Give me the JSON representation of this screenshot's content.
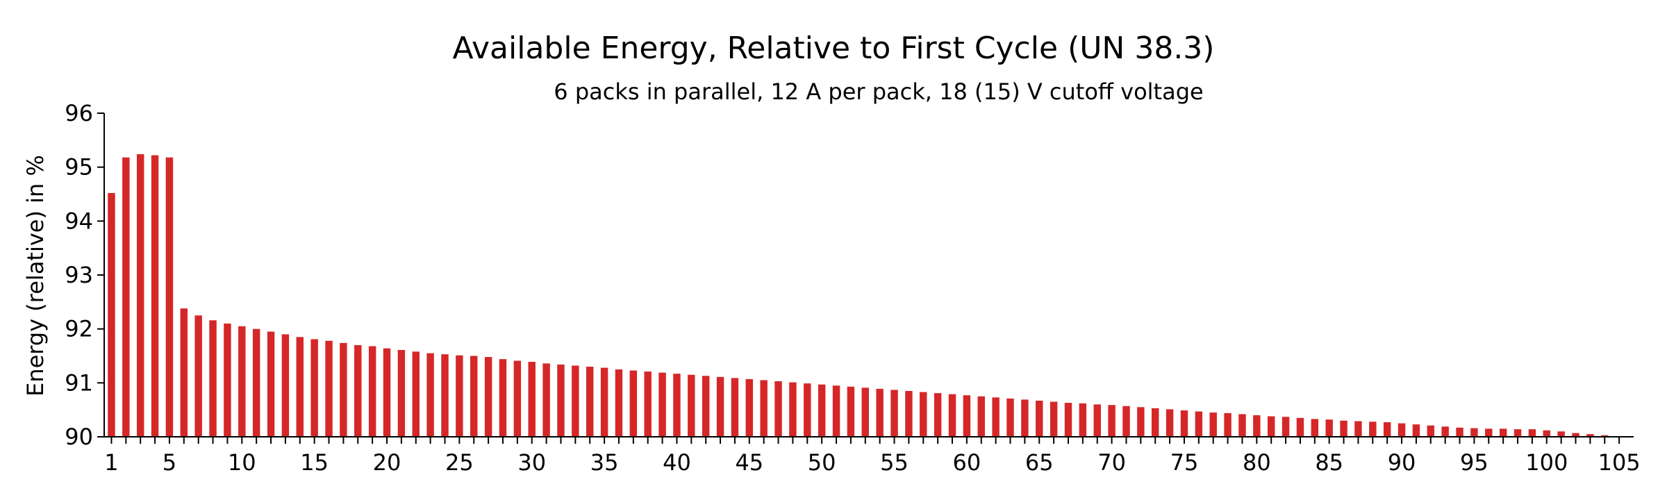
{
  "chart_data": {
    "type": "bar",
    "title": "Available Energy, Relative to First Cycle (UN 38.3)",
    "subtitle": "6 packs in parallel, 12 A per pack, 18 (15) V cutoff voltage",
    "xlabel": "",
    "ylabel": "Energy (relative) in %",
    "ylim": [
      90,
      96
    ],
    "yticks": [
      90,
      91,
      92,
      93,
      94,
      95,
      96
    ],
    "xticks": [
      1,
      5,
      10,
      15,
      20,
      25,
      30,
      35,
      40,
      45,
      50,
      55,
      60,
      65,
      70,
      75,
      80,
      85,
      90,
      95,
      100,
      105
    ],
    "bar_color": "#d62728",
    "grid": false,
    "categories": [
      1,
      2,
      3,
      4,
      5,
      6,
      7,
      8,
      9,
      10,
      11,
      12,
      13,
      14,
      15,
      16,
      17,
      18,
      19,
      20,
      21,
      22,
      23,
      24,
      25,
      26,
      27,
      28,
      29,
      30,
      31,
      32,
      33,
      34,
      35,
      36,
      37,
      38,
      39,
      40,
      41,
      42,
      43,
      44,
      45,
      46,
      47,
      48,
      49,
      50,
      51,
      52,
      53,
      54,
      55,
      56,
      57,
      58,
      59,
      60,
      61,
      62,
      63,
      64,
      65,
      66,
      67,
      68,
      69,
      70,
      71,
      72,
      73,
      74,
      75,
      76,
      77,
      78,
      79,
      80,
      81,
      82,
      83,
      84,
      85,
      86,
      87,
      88,
      89,
      90,
      91,
      92,
      93,
      94,
      95,
      96,
      97,
      98,
      99,
      100,
      101,
      102,
      103,
      104,
      105
    ],
    "values": [
      94.52,
      95.18,
      95.24,
      95.22,
      95.18,
      92.38,
      92.25,
      92.16,
      92.1,
      92.05,
      92.0,
      91.95,
      91.9,
      91.85,
      91.81,
      91.78,
      91.74,
      91.7,
      91.68,
      91.64,
      91.61,
      91.58,
      91.55,
      91.53,
      91.51,
      91.5,
      91.48,
      91.44,
      91.41,
      91.39,
      91.36,
      91.34,
      91.32,
      91.3,
      91.28,
      91.25,
      91.23,
      91.21,
      91.19,
      91.17,
      91.15,
      91.13,
      91.11,
      91.09,
      91.07,
      91.05,
      91.03,
      91.01,
      90.99,
      90.97,
      90.95,
      90.93,
      90.91,
      90.89,
      90.87,
      90.85,
      90.83,
      90.81,
      90.79,
      90.77,
      90.75,
      90.73,
      90.71,
      90.69,
      90.67,
      90.65,
      90.63,
      90.62,
      90.6,
      90.59,
      90.57,
      90.55,
      90.53,
      90.51,
      90.49,
      90.47,
      90.45,
      90.44,
      90.42,
      90.4,
      90.38,
      90.37,
      90.35,
      90.33,
      90.32,
      90.3,
      90.29,
      90.28,
      90.27,
      90.25,
      90.23,
      90.21,
      90.19,
      90.17,
      90.16,
      90.15,
      90.15,
      90.14,
      90.14,
      90.12,
      90.1,
      90.07,
      90.05,
      90.03,
      90.01
    ]
  }
}
